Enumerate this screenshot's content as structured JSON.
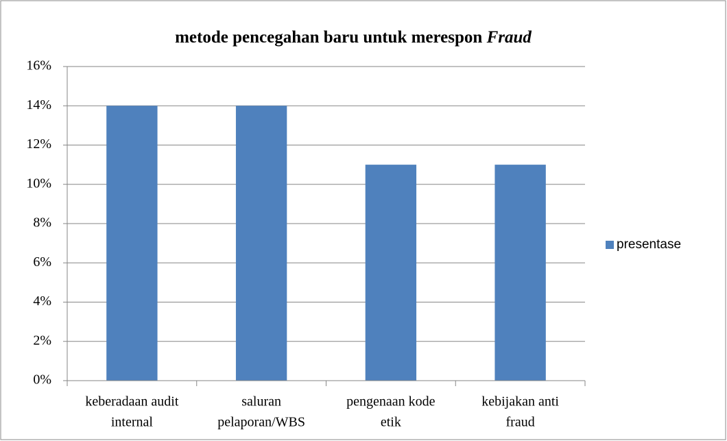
{
  "chart_data": {
    "type": "bar",
    "title": {
      "text": "metode pencegahan baru untuk merespon",
      "emphasis": "Fraud"
    },
    "categories": [
      [
        "keberadaan audit",
        "internal"
      ],
      [
        "saluran",
        "pelaporan/WBS"
      ],
      [
        "pengenaan kode",
        "etik"
      ],
      [
        "kebijakan anti",
        "fraud"
      ]
    ],
    "series": [
      {
        "name": "presentase",
        "color": "#4f81bd",
        "values": [
          14,
          14,
          11,
          11
        ]
      }
    ],
    "ylim": [
      0,
      16
    ],
    "yticks": [
      {
        "value": 0,
        "label": "0%"
      },
      {
        "value": 2,
        "label": "2%"
      },
      {
        "value": 4,
        "label": "4%"
      },
      {
        "value": 6,
        "label": "6%"
      },
      {
        "value": 8,
        "label": "8%"
      },
      {
        "value": 10,
        "label": "10%"
      },
      {
        "value": 12,
        "label": "12%"
      },
      {
        "value": 14,
        "label": "14%"
      },
      {
        "value": 16,
        "label": "16%"
      }
    ],
    "grid": true,
    "legend": "right"
  }
}
